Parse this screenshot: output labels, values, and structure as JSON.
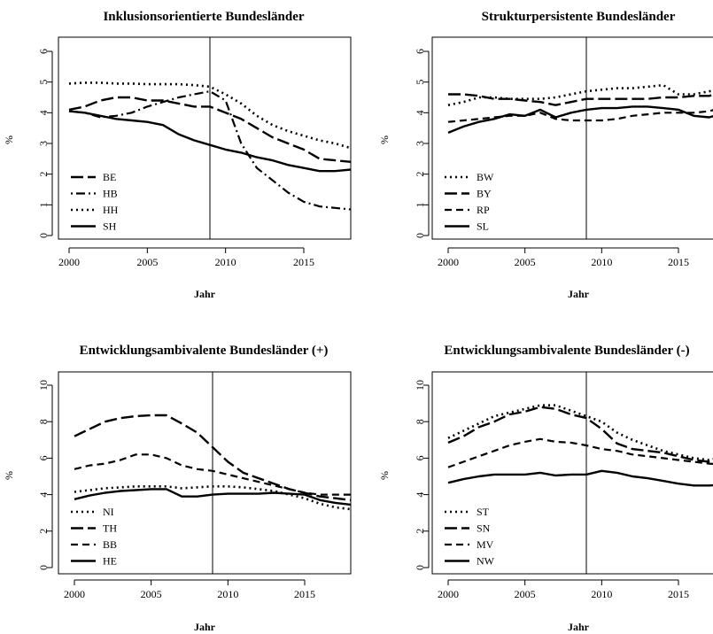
{
  "figure": {
    "panels": [
      {
        "title": "Inklusionsorientierte Bundesländer",
        "xlabel": "Jahr",
        "ylabel": "%"
      },
      {
        "title": "Strukturpersistente Bundesländer",
        "xlabel": "Jahr",
        "ylabel": "%"
      },
      {
        "title": "Entwicklungsambivalente Bundesländer (+)",
        "xlabel": "Jahr",
        "ylabel": "%"
      },
      {
        "title": "Entwicklungsambivalente Bundesländer (-)",
        "xlabel": "Jahr",
        "ylabel": "%"
      }
    ]
  },
  "chart_data": [
    {
      "type": "line",
      "title": "Inklusionsorientierte Bundesländer",
      "xlabel": "Jahr",
      "ylabel": "%",
      "xlim": [
        2000,
        2018
      ],
      "ylim": [
        0,
        6
      ],
      "xticks": [
        2000,
        2005,
        2010,
        2015
      ],
      "yticks": [
        0,
        1,
        2,
        3,
        4,
        5,
        6
      ],
      "vline": 2009,
      "grid": false,
      "legend": "bottom-left",
      "x": [
        2000,
        2001,
        2002,
        2003,
        2004,
        2005,
        2006,
        2007,
        2008,
        2009,
        2010,
        2011,
        2012,
        2013,
        2014,
        2015,
        2016,
        2017,
        2018
      ],
      "series": [
        {
          "name": "BE",
          "style": "longdash",
          "values": [
            4.1,
            4.2,
            4.4,
            4.5,
            4.5,
            4.4,
            4.4,
            4.3,
            4.2,
            4.2,
            4.0,
            3.8,
            3.5,
            3.2,
            3.0,
            2.8,
            2.5,
            2.45,
            2.4
          ]
        },
        {
          "name": "HB",
          "style": "dotdash",
          "values": [
            4.05,
            4.0,
            3.85,
            3.9,
            4.0,
            4.2,
            4.35,
            4.5,
            4.6,
            4.7,
            4.4,
            3.0,
            2.2,
            1.8,
            1.4,
            1.1,
            0.95,
            0.9,
            0.85
          ]
        },
        {
          "name": "HH",
          "style": "dotted",
          "values": [
            4.95,
            4.98,
            4.98,
            4.95,
            4.95,
            4.93,
            4.93,
            4.93,
            4.9,
            4.85,
            4.6,
            4.3,
            3.9,
            3.6,
            3.4,
            3.25,
            3.1,
            3.0,
            2.85
          ]
        },
        {
          "name": "SH",
          "style": "solid",
          "values": [
            4.05,
            4.0,
            3.9,
            3.8,
            3.75,
            3.7,
            3.6,
            3.3,
            3.1,
            2.95,
            2.8,
            2.7,
            2.55,
            2.45,
            2.3,
            2.2,
            2.1,
            2.1,
            2.15
          ]
        }
      ]
    },
    {
      "type": "line",
      "title": "Strukturpersistente Bundesländer",
      "xlabel": "Jahr",
      "ylabel": "%",
      "xlim": [
        2000,
        2018
      ],
      "ylim": [
        0,
        6
      ],
      "xticks": [
        2000,
        2005,
        2010,
        2015
      ],
      "yticks": [
        0,
        1,
        2,
        3,
        4,
        5,
        6
      ],
      "vline": 2009,
      "grid": false,
      "legend": "bottom-left",
      "x": [
        2000,
        2001,
        2002,
        2003,
        2004,
        2005,
        2006,
        2007,
        2008,
        2009,
        2010,
        2011,
        2012,
        2013,
        2014,
        2015,
        2016,
        2017,
        2018
      ],
      "series": [
        {
          "name": "BW",
          "style": "dotted",
          "values": [
            4.25,
            4.35,
            4.5,
            4.5,
            4.45,
            4.45,
            4.45,
            4.5,
            4.6,
            4.7,
            4.75,
            4.8,
            4.8,
            4.85,
            4.9,
            4.6,
            4.6,
            4.7,
            4.75
          ]
        },
        {
          "name": "BY",
          "style": "longdash",
          "values": [
            4.6,
            4.6,
            4.55,
            4.45,
            4.45,
            4.4,
            4.35,
            4.25,
            4.35,
            4.45,
            4.45,
            4.45,
            4.45,
            4.45,
            4.5,
            4.5,
            4.55,
            4.55,
            4.7
          ]
        },
        {
          "name": "RP",
          "style": "dashed",
          "values": [
            3.7,
            3.75,
            3.8,
            3.85,
            3.9,
            3.9,
            4.0,
            3.8,
            3.75,
            3.75,
            3.75,
            3.8,
            3.9,
            3.95,
            4.0,
            4.0,
            4.0,
            4.05,
            4.2
          ]
        },
        {
          "name": "SL",
          "style": "solid",
          "values": [
            3.35,
            3.55,
            3.7,
            3.8,
            3.95,
            3.9,
            4.1,
            3.85,
            4.0,
            4.1,
            4.15,
            4.15,
            4.2,
            4.2,
            4.15,
            4.1,
            3.9,
            3.85,
            4.0
          ]
        }
      ]
    },
    {
      "type": "line",
      "title": "Entwicklungsambivalente Bundesländer (+)",
      "xlabel": "Jahr",
      "ylabel": "%",
      "xlim": [
        2000,
        2018
      ],
      "ylim": [
        0,
        10
      ],
      "xticks": [
        2000,
        2005,
        2010,
        2015
      ],
      "yticks": [
        0,
        2,
        4,
        6,
        8,
        10
      ],
      "vline": 2009,
      "grid": false,
      "legend": "bottom-left",
      "x": [
        2000,
        2001,
        2002,
        2003,
        2004,
        2005,
        2006,
        2007,
        2008,
        2009,
        2010,
        2011,
        2012,
        2013,
        2014,
        2015,
        2016,
        2017,
        2018
      ],
      "series": [
        {
          "name": "NI",
          "style": "dotted",
          "values": [
            4.15,
            4.25,
            4.35,
            4.4,
            4.45,
            4.45,
            4.45,
            4.35,
            4.4,
            4.45,
            4.45,
            4.4,
            4.3,
            4.2,
            4.0,
            3.8,
            3.5,
            3.3,
            3.2
          ]
        },
        {
          "name": "TH",
          "style": "longdash",
          "values": [
            7.2,
            7.6,
            8.0,
            8.2,
            8.3,
            8.35,
            8.35,
            7.9,
            7.4,
            6.6,
            5.8,
            5.2,
            4.9,
            4.6,
            4.3,
            4.1,
            3.9,
            3.8,
            3.7
          ]
        },
        {
          "name": "BB",
          "style": "dashed",
          "values": [
            5.4,
            5.6,
            5.7,
            5.9,
            6.2,
            6.2,
            6.0,
            5.6,
            5.4,
            5.3,
            5.1,
            4.9,
            4.7,
            4.5,
            4.3,
            4.1,
            4.0,
            4.0,
            4.0
          ]
        },
        {
          "name": "HE",
          "style": "solid",
          "values": [
            3.75,
            3.95,
            4.1,
            4.2,
            4.25,
            4.3,
            4.3,
            3.9,
            3.9,
            4.0,
            4.05,
            4.05,
            4.05,
            4.1,
            4.05,
            4.0,
            3.7,
            3.55,
            3.45
          ]
        }
      ]
    },
    {
      "type": "line",
      "title": "Entwicklungsambivalente Bundesländer (-)",
      "xlabel": "Jahr",
      "ylabel": "%",
      "xlim": [
        2000,
        2018
      ],
      "ylim": [
        0,
        10
      ],
      "xticks": [
        2000,
        2005,
        2010,
        2015
      ],
      "yticks": [
        0,
        2,
        4,
        6,
        8,
        10
      ],
      "vline": 2009,
      "grid": false,
      "legend": "bottom-left",
      "x": [
        2000,
        2001,
        2002,
        2003,
        2004,
        2005,
        2006,
        2007,
        2008,
        2009,
        2010,
        2011,
        2012,
        2013,
        2014,
        2015,
        2016,
        2017,
        2018
      ],
      "series": [
        {
          "name": "ST",
          "style": "dotted",
          "values": [
            7.1,
            7.5,
            7.9,
            8.3,
            8.5,
            8.7,
            8.9,
            8.9,
            8.6,
            8.3,
            8.0,
            7.4,
            7.0,
            6.7,
            6.4,
            6.2,
            6.0,
            5.9,
            6.1
          ]
        },
        {
          "name": "SN",
          "style": "longdash",
          "values": [
            6.85,
            7.2,
            7.7,
            8.0,
            8.4,
            8.55,
            8.8,
            8.7,
            8.4,
            8.2,
            7.6,
            6.8,
            6.5,
            6.4,
            6.3,
            6.1,
            5.9,
            5.8,
            5.6
          ]
        },
        {
          "name": "MV",
          "style": "dashed",
          "values": [
            5.5,
            5.8,
            6.1,
            6.4,
            6.7,
            6.9,
            7.05,
            6.9,
            6.85,
            6.7,
            6.5,
            6.4,
            6.2,
            6.1,
            6.0,
            5.9,
            5.8,
            5.7,
            5.65
          ]
        },
        {
          "name": "NW",
          "style": "solid",
          "values": [
            4.65,
            4.85,
            5.0,
            5.1,
            5.1,
            5.1,
            5.2,
            5.05,
            5.1,
            5.1,
            5.3,
            5.2,
            5.0,
            4.9,
            4.75,
            4.6,
            4.5,
            4.5,
            4.55
          ]
        }
      ]
    }
  ]
}
